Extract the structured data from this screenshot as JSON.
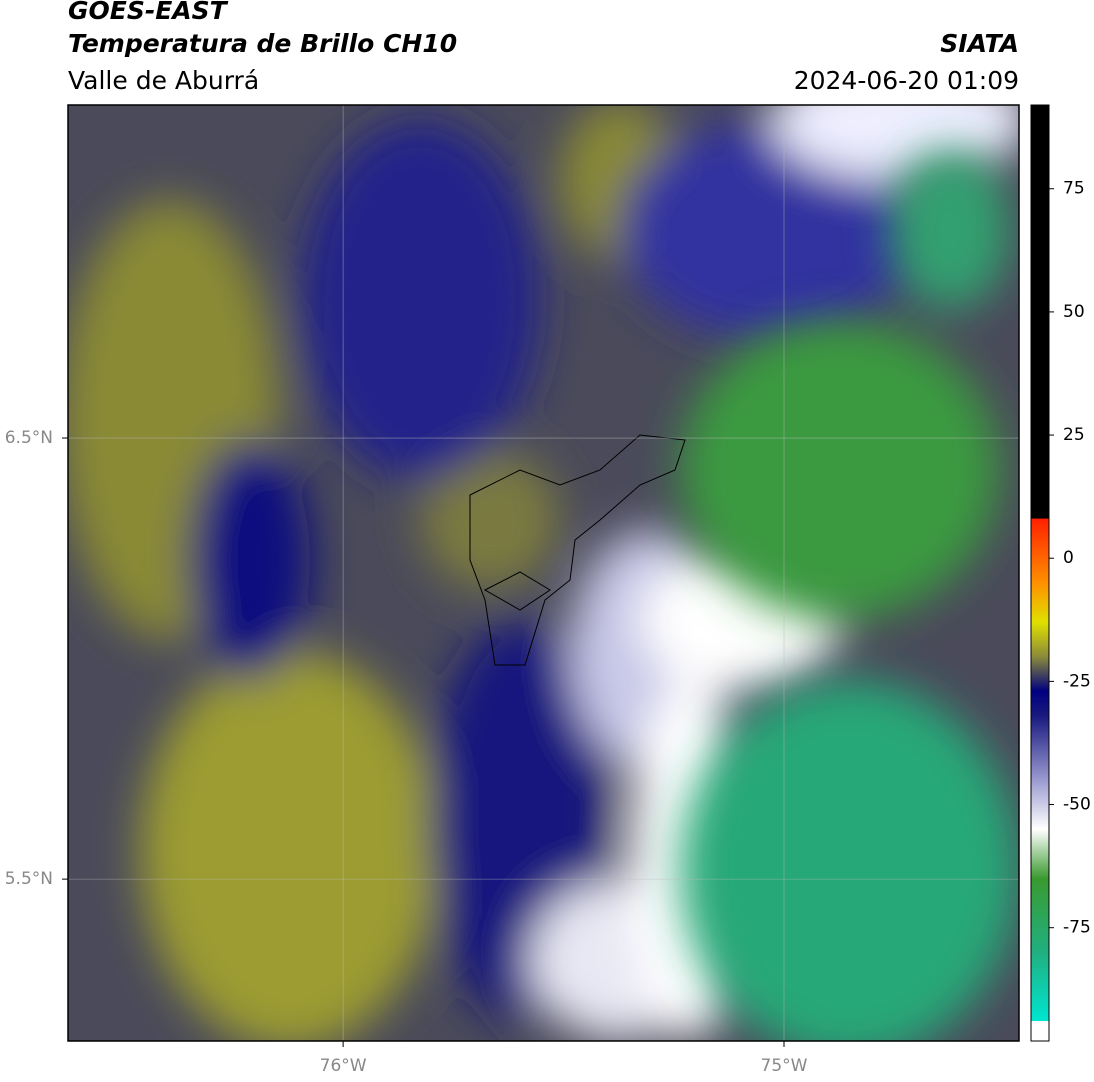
{
  "header": {
    "source": "GOES-EAST",
    "title": "Temperatura de Brillo CH10",
    "region": "Valle de Aburrá",
    "agency": "SIATA",
    "datetime": "2024-06-20 01:09"
  },
  "map": {
    "xlim": [
      -76.624,
      -74.467
    ],
    "ylim": [
      5.133,
      7.255
    ],
    "xticks": [
      {
        "value": -76,
        "label": "76°W"
      },
      {
        "value": -75,
        "label": "75°W"
      }
    ],
    "yticks": [
      {
        "value": 6.5,
        "label": "6.5°N"
      },
      {
        "value": 5.5,
        "label": "5.5°N"
      }
    ],
    "grid": true
  },
  "colorbar": {
    "lim": [
      -98,
      92
    ],
    "ticks": [
      75,
      50,
      25,
      0,
      -25,
      -50,
      -75
    ],
    "stops": [
      {
        "value": -98,
        "color": "#ffffff"
      },
      {
        "value": -94,
        "color": "#ffffff"
      },
      {
        "value": -93.9,
        "color": "#00e5d0"
      },
      {
        "value": -80,
        "color": "#20b080"
      },
      {
        "value": -65,
        "color": "#3a9a30"
      },
      {
        "value": -55,
        "color": "#ffffff"
      },
      {
        "value": -45,
        "color": "#9a9ad0"
      },
      {
        "value": -32,
        "color": "#1a1a80"
      },
      {
        "value": -27,
        "color": "#000080"
      },
      {
        "value": -20,
        "color": "#8a8a3a"
      },
      {
        "value": -13,
        "color": "#e0e000"
      },
      {
        "value": -5,
        "color": "#ff9000"
      },
      {
        "value": 8,
        "color": "#ff2000"
      },
      {
        "value": 8.1,
        "color": "#000000"
      },
      {
        "value": 92,
        "color": "#000000"
      }
    ]
  }
}
